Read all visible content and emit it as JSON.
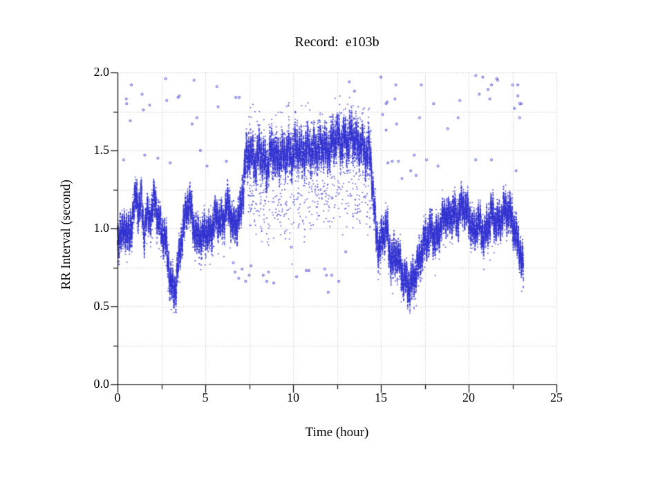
{
  "chart_data": {
    "type": "scatter",
    "title": "Record:  e103b",
    "xlabel": "Time (hour)",
    "ylabel": "RR Interval (second)",
    "xlim": [
      0,
      25
    ],
    "ylim": [
      0.0,
      2.0
    ],
    "x_tick_values": [
      0,
      5,
      10,
      15,
      20,
      25
    ],
    "x_tick_labels": [
      "0",
      "5",
      "10",
      "15",
      "20",
      "25"
    ],
    "x_minor_step": 2.5,
    "y_tick_values": [
      0.0,
      0.5,
      1.0,
      1.5,
      2.0
    ],
    "y_tick_labels": [
      "0.0",
      "0.5",
      "1.0",
      "1.5",
      "2.0"
    ],
    "y_minor_step": 0.25,
    "grid": {
      "on": true,
      "style": "dotted",
      "color": "#b4b4b4",
      "x_step": 2.5,
      "y_step": 0.25
    },
    "marker": {
      "color": "#3434d2",
      "size": 1.7,
      "opacity": 0.82
    },
    "series": {
      "name": "RR intervals",
      "t_start": 0.0,
      "t_end": 23.12,
      "n_points": 30000,
      "noise_sd": 0.035,
      "mean_control_points": [
        [
          0,
          0.88
        ],
        [
          0.15,
          1.0
        ],
        [
          0.3,
          0.95
        ],
        [
          0.5,
          1.02
        ],
        [
          0.7,
          0.93
        ],
        [
          0.9,
          1.13
        ],
        [
          1.05,
          1.2
        ],
        [
          1.2,
          1.12
        ],
        [
          1.35,
          1.2
        ],
        [
          1.5,
          0.95
        ],
        [
          1.65,
          1.1
        ],
        [
          1.8,
          1.05
        ],
        [
          2.0,
          1.14
        ],
        [
          2.15,
          1.18
        ],
        [
          2.3,
          1.07
        ],
        [
          2.5,
          0.98
        ],
        [
          2.7,
          0.95
        ],
        [
          2.85,
          0.82
        ],
        [
          3.0,
          0.68
        ],
        [
          3.15,
          0.6
        ],
        [
          3.3,
          0.62
        ],
        [
          3.45,
          0.75
        ],
        [
          3.6,
          0.9
        ],
        [
          3.75,
          1.0
        ],
        [
          3.9,
          1.1
        ],
        [
          4.05,
          1.17
        ],
        [
          4.2,
          1.12
        ],
        [
          4.35,
          1.02
        ],
        [
          4.5,
          0.93
        ],
        [
          4.65,
          0.98
        ],
        [
          4.8,
          0.92
        ],
        [
          5.0,
          1.0
        ],
        [
          5.2,
          0.95
        ],
        [
          5.4,
          1.0
        ],
        [
          5.6,
          1.08
        ],
        [
          5.8,
          1.05
        ],
        [
          6.0,
          1.03
        ],
        [
          6.2,
          1.15
        ],
        [
          6.4,
          1.12
        ],
        [
          6.6,
          1.0
        ],
        [
          6.8,
          1.05
        ],
        [
          7.0,
          1.1
        ],
        [
          7.15,
          1.28
        ],
        [
          7.3,
          1.42
        ],
        [
          7.5,
          1.5
        ],
        [
          7.7,
          1.45
        ],
        [
          7.9,
          1.42
        ],
        [
          8.1,
          1.5
        ],
        [
          8.3,
          1.45
        ],
        [
          8.5,
          1.38
        ],
        [
          8.7,
          1.48
        ],
        [
          8.9,
          1.5
        ],
        [
          9.1,
          1.42
        ],
        [
          9.3,
          1.48
        ],
        [
          9.5,
          1.45
        ],
        [
          9.7,
          1.5
        ],
        [
          9.9,
          1.45
        ],
        [
          10.1,
          1.5
        ],
        [
          10.3,
          1.52
        ],
        [
          10.5,
          1.47
        ],
        [
          10.7,
          1.5
        ],
        [
          10.9,
          1.52
        ],
        [
          11.1,
          1.48
        ],
        [
          11.3,
          1.52
        ],
        [
          11.5,
          1.5
        ],
        [
          11.7,
          1.55
        ],
        [
          11.9,
          1.48
        ],
        [
          12.1,
          1.52
        ],
        [
          12.3,
          1.55
        ],
        [
          12.5,
          1.6
        ],
        [
          12.7,
          1.55
        ],
        [
          12.9,
          1.58
        ],
        [
          13.1,
          1.55
        ],
        [
          13.3,
          1.6
        ],
        [
          13.5,
          1.58
        ],
        [
          13.7,
          1.52
        ],
        [
          13.9,
          1.55
        ],
        [
          14.1,
          1.48
        ],
        [
          14.3,
          1.5
        ],
        [
          14.45,
          1.42
        ],
        [
          14.6,
          1.15
        ],
        [
          14.75,
          0.95
        ],
        [
          14.9,
          0.88
        ],
        [
          15.1,
          0.95
        ],
        [
          15.3,
          1.02
        ],
        [
          15.5,
          0.85
        ],
        [
          15.7,
          0.78
        ],
        [
          15.9,
          0.85
        ],
        [
          16.1,
          0.75
        ],
        [
          16.3,
          0.68
        ],
        [
          16.5,
          0.65
        ],
        [
          16.7,
          0.63
        ],
        [
          16.9,
          0.7
        ],
        [
          17.1,
          0.75
        ],
        [
          17.3,
          0.85
        ],
        [
          17.5,
          0.92
        ],
        [
          17.7,
          0.95
        ],
        [
          17.9,
          1.0
        ],
        [
          18.1,
          0.92
        ],
        [
          18.3,
          0.98
        ],
        [
          18.5,
          1.05
        ],
        [
          18.7,
          1.1
        ],
        [
          18.9,
          1.05
        ],
        [
          19.1,
          1.12
        ],
        [
          19.3,
          1.05
        ],
        [
          19.5,
          1.12
        ],
        [
          19.7,
          1.15
        ],
        [
          19.9,
          1.1
        ],
        [
          20.1,
          1.05
        ],
        [
          20.3,
          0.95
        ],
        [
          20.5,
          1.05
        ],
        [
          20.7,
          1.0
        ],
        [
          20.9,
          0.95
        ],
        [
          21.1,
          1.02
        ],
        [
          21.3,
          1.1
        ],
        [
          21.5,
          1.05
        ],
        [
          21.7,
          1.02
        ],
        [
          21.9,
          1.08
        ],
        [
          22.1,
          1.12
        ],
        [
          22.3,
          1.1
        ],
        [
          22.5,
          1.05
        ],
        [
          22.7,
          0.95
        ],
        [
          22.9,
          0.88
        ],
        [
          23.0,
          0.8
        ],
        [
          23.12,
          0.72
        ]
      ],
      "amp_segments": [
        [
          0,
          7.0,
          0.11
        ],
        [
          7.0,
          7.5,
          0.15
        ],
        [
          7.5,
          14.45,
          0.13
        ],
        [
          14.45,
          17.5,
          0.12
        ],
        [
          17.5,
          23.12,
          0.11
        ]
      ],
      "tails": [
        {
          "t0": 7.35,
          "t1": 14.45,
          "p": 0.085,
          "max": 0.5,
          "dir": -1
        },
        {
          "t0": 7.35,
          "t1": 14.45,
          "p": 0.05,
          "max": 0.22,
          "dir": 1
        },
        {
          "t0": 0,
          "t1": 7.0,
          "p": 0.02,
          "max": 0.18,
          "dir": -1
        },
        {
          "t0": 14.45,
          "t1": 23.12,
          "p": 0.02,
          "max": 0.15,
          "dir": -1
        }
      ]
    },
    "outliers": [
      [
        0.35,
        1.44
      ],
      [
        0.5,
        1.83
      ],
      [
        0.52,
        1.8
      ],
      [
        0.73,
        1.69
      ],
      [
        0.79,
        1.92
      ],
      [
        1.4,
        1.86
      ],
      [
        1.47,
        1.76
      ],
      [
        1.55,
        1.47
      ],
      [
        1.83,
        1.79
      ],
      [
        2.3,
        1.45
      ],
      [
        2.74,
        1.96
      ],
      [
        2.8,
        1.82
      ],
      [
        3.0,
        1.42
      ],
      [
        3.45,
        1.84
      ],
      [
        3.52,
        1.85
      ],
      [
        4.25,
        1.67
      ],
      [
        4.36,
        1.95
      ],
      [
        4.52,
        1.71
      ],
      [
        4.72,
        1.5
      ],
      [
        5.1,
        1.4
      ],
      [
        5.66,
        1.91
      ],
      [
        5.73,
        1.78
      ],
      [
        6.2,
        1.43
      ],
      [
        6.74,
        1.84
      ],
      [
        6.93,
        1.84
      ],
      [
        6.6,
        0.78
      ],
      [
        6.7,
        0.72
      ],
      [
        6.9,
        0.68
      ],
      [
        7.1,
        0.74
      ],
      [
        7.3,
        0.66
      ],
      [
        7.5,
        0.7
      ],
      [
        7.6,
        0.76
      ],
      [
        8.3,
        0.7
      ],
      [
        8.5,
        0.66
      ],
      [
        8.6,
        0.72
      ],
      [
        8.9,
        0.65
      ],
      [
        9.9,
        0.88
      ],
      [
        10.2,
        0.69
      ],
      [
        10.75,
        0.73
      ],
      [
        10.9,
        0.73
      ],
      [
        11.8,
        0.74
      ],
      [
        11.9,
        0.7
      ],
      [
        12.0,
        0.59
      ],
      [
        12.2,
        0.7
      ],
      [
        12.6,
        0.66
      ],
      [
        13.0,
        0.85
      ],
      [
        13.2,
        1.94
      ],
      [
        13.5,
        1.88
      ],
      [
        15.0,
        1.97
      ],
      [
        15.1,
        1.73
      ],
      [
        15.3,
        1.8
      ],
      [
        15.35,
        1.81
      ],
      [
        15.3,
        1.63
      ],
      [
        15.4,
        1.42
      ],
      [
        15.65,
        1.43
      ],
      [
        15.8,
        1.83
      ],
      [
        15.85,
        1.92
      ],
      [
        15.9,
        1.67
      ],
      [
        16.0,
        1.43
      ],
      [
        16.2,
        1.32
      ],
      [
        16.7,
        1.37
      ],
      [
        16.9,
        1.47
      ],
      [
        17.0,
        1.34
      ],
      [
        17.2,
        1.71
      ],
      [
        17.3,
        1.92
      ],
      [
        17.6,
        1.44
      ],
      [
        18.0,
        1.8
      ],
      [
        18.25,
        1.4
      ],
      [
        18.8,
        1.64
      ],
      [
        19.4,
        1.71
      ],
      [
        19.5,
        1.82
      ],
      [
        20.4,
        1.98
      ],
      [
        20.4,
        1.44
      ],
      [
        20.6,
        1.86
      ],
      [
        20.8,
        1.97
      ],
      [
        21.1,
        1.89
      ],
      [
        21.2,
        1.83
      ],
      [
        21.3,
        1.92
      ],
      [
        21.3,
        1.44
      ],
      [
        21.6,
        1.96
      ],
      [
        21.65,
        1.95
      ],
      [
        22.5,
        1.92
      ],
      [
        22.6,
        1.77
      ],
      [
        22.7,
        1.37
      ],
      [
        22.8,
        1.92
      ],
      [
        22.8,
        1.85
      ],
      [
        22.9,
        1.71
      ],
      [
        22.9,
        1.8
      ],
      [
        23.0,
        1.8
      ]
    ],
    "axis_color": "#000000",
    "background_color": "#ffffff"
  }
}
